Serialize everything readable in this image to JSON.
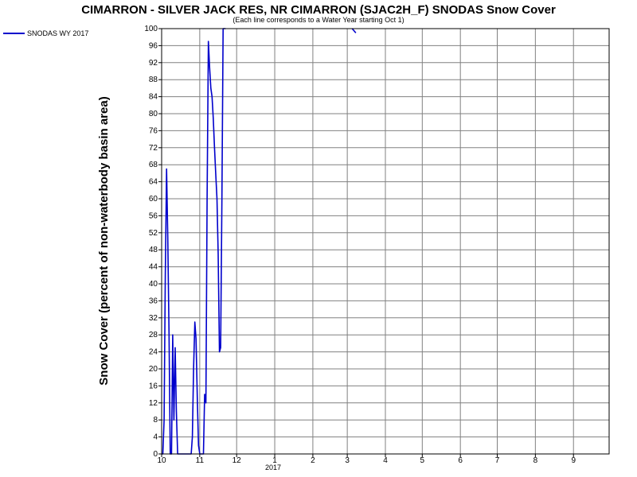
{
  "chart_data": {
    "type": "line",
    "title": "CIMARRON - SILVER JACK RES, NR CIMARRON (SJAC2H_F) SNODAS Snow Cover",
    "subtitle": "(Each line corresponds to a Water Year starting Oct 1)",
    "ylabel": "Snow Cover (percent of non-waterbody basin area)",
    "xlabel": "",
    "x_year_label": "2017",
    "ylim": [
      0,
      100
    ],
    "xlim": [
      "2016-10-01",
      "2017-09-30"
    ],
    "grid": true,
    "legend_placement": "top-left",
    "y_ticks": [
      0,
      4,
      8,
      12,
      16,
      20,
      24,
      28,
      32,
      36,
      40,
      44,
      48,
      52,
      56,
      60,
      64,
      68,
      72,
      76,
      80,
      84,
      88,
      92,
      96,
      100
    ],
    "x_ticks": [
      {
        "date": "2016-10-01",
        "label": "10"
      },
      {
        "date": "2016-11-01",
        "label": "11"
      },
      {
        "date": "2016-12-01",
        "label": "12"
      },
      {
        "date": "2017-01-01",
        "label": "1"
      },
      {
        "date": "2017-02-01",
        "label": "2"
      },
      {
        "date": "2017-03-01",
        "label": "3"
      },
      {
        "date": "2017-04-01",
        "label": "4"
      },
      {
        "date": "2017-05-01",
        "label": "5"
      },
      {
        "date": "2017-06-01",
        "label": "6"
      },
      {
        "date": "2017-07-01",
        "label": "7"
      },
      {
        "date": "2017-08-01",
        "label": "8"
      },
      {
        "date": "2017-09-01",
        "label": "9"
      }
    ],
    "series": [
      {
        "name": "SNODAS WY 2017",
        "color": "#0000cc",
        "segments": [
          [
            [
              "2016-10-01",
              0
            ],
            [
              "2016-10-02",
              0
            ],
            [
              "2016-10-03",
              8
            ],
            [
              "2016-10-04",
              42
            ],
            [
              "2016-10-05",
              67
            ],
            [
              "2016-10-06",
              51
            ],
            [
              "2016-10-07",
              28
            ],
            [
              "2016-10-08",
              0
            ],
            [
              "2016-10-09",
              0
            ],
            [
              "2016-10-10",
              28
            ],
            [
              "2016-10-11",
              8
            ],
            [
              "2016-10-12",
              25
            ],
            [
              "2016-10-13",
              10
            ],
            [
              "2016-10-14",
              0
            ],
            [
              "2016-10-15",
              0
            ],
            [
              "2016-10-16",
              0
            ],
            [
              "2016-10-20",
              0
            ],
            [
              "2016-10-25",
              0
            ],
            [
              "2016-10-26",
              4
            ],
            [
              "2016-10-27",
              20
            ],
            [
              "2016-10-28",
              31
            ],
            [
              "2016-10-29",
              27
            ],
            [
              "2016-10-30",
              13
            ],
            [
              "2016-10-31",
              2
            ],
            [
              "2016-11-01",
              0
            ],
            [
              "2016-11-02",
              0
            ],
            [
              "2016-11-03",
              0
            ],
            [
              "2016-11-04",
              0
            ],
            [
              "2016-11-05",
              14
            ],
            [
              "2016-11-06",
              12
            ],
            [
              "2016-11-07",
              60
            ],
            [
              "2016-11-08",
              97
            ],
            [
              "2016-11-09",
              91
            ],
            [
              "2016-11-10",
              86
            ],
            [
              "2016-11-11",
              84
            ],
            [
              "2016-11-12",
              79
            ],
            [
              "2016-11-13",
              72
            ],
            [
              "2016-11-14",
              66
            ],
            [
              "2016-11-15",
              60
            ],
            [
              "2016-11-16",
              47
            ],
            [
              "2016-11-17",
              24
            ],
            [
              "2016-11-18",
              25
            ],
            [
              "2016-11-19",
              60
            ],
            [
              "2016-11-20",
              100
            ],
            [
              "2016-11-21",
              100
            ],
            [
              "2016-11-22",
              100
            ]
          ],
          [
            [
              "2017-03-05",
              100
            ],
            [
              "2017-03-08",
              99
            ]
          ]
        ]
      }
    ]
  }
}
